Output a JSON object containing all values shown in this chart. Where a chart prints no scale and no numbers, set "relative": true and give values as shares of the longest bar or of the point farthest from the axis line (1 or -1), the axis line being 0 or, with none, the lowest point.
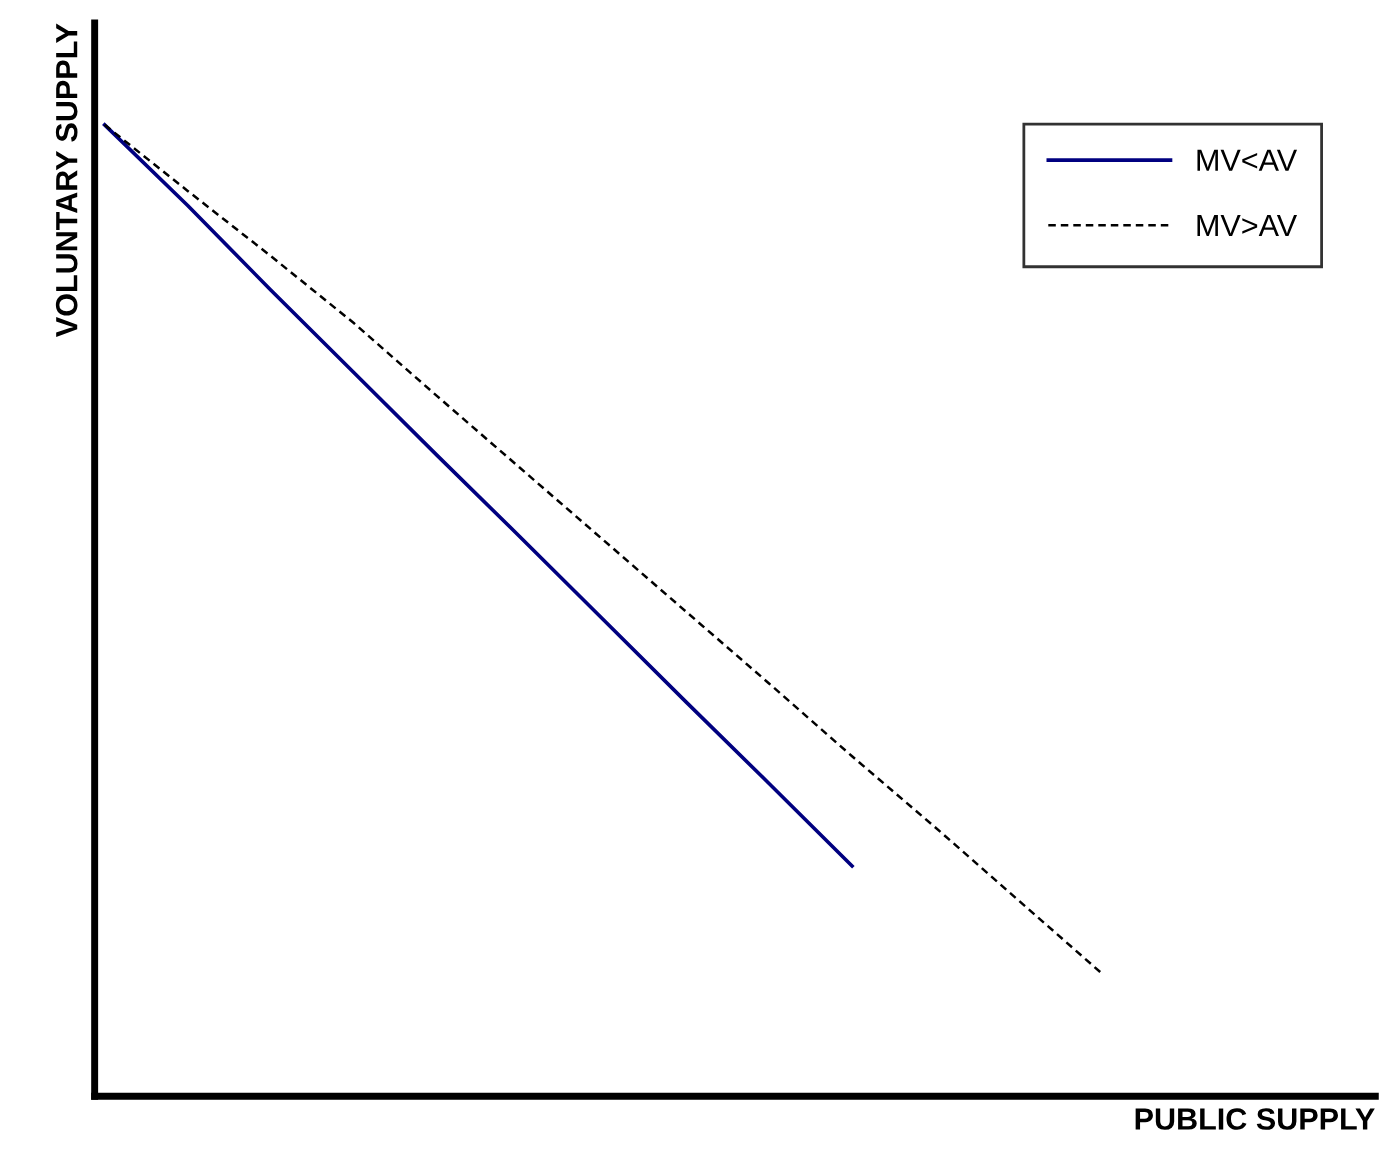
{
  "chart_data": {
    "type": "line",
    "relative": true,
    "xlabel": "PUBLIC SUPPLY",
    "ylabel": "VOLUNTARY SUPPLY",
    "tick_labels": false,
    "legend": "top right",
    "grid": false,
    "categories": [
      null,
      null,
      null,
      null,
      null,
      null,
      null,
      null,
      null,
      null,
      null,
      null,
      null
    ],
    "series": [
      {
        "name": "MV<AV",
        "color": "#000080",
        "line_style": "solid",
        "values": [
          1,
          0.917,
          0.83,
          0.745,
          0.66,
          0.576,
          0.491,
          0.406,
          0.322,
          0.237,
          null,
          null,
          null
        ]
      },
      {
        "name": "MV>AV",
        "color": "#000000",
        "line_style": "dashed",
        "values": [
          1,
          0.932,
          0.865,
          0.796,
          0.721,
          0.647,
          0.573,
          0.499,
          0.425,
          0.35,
          0.277,
          0.202,
          0.127
        ]
      }
    ]
  }
}
